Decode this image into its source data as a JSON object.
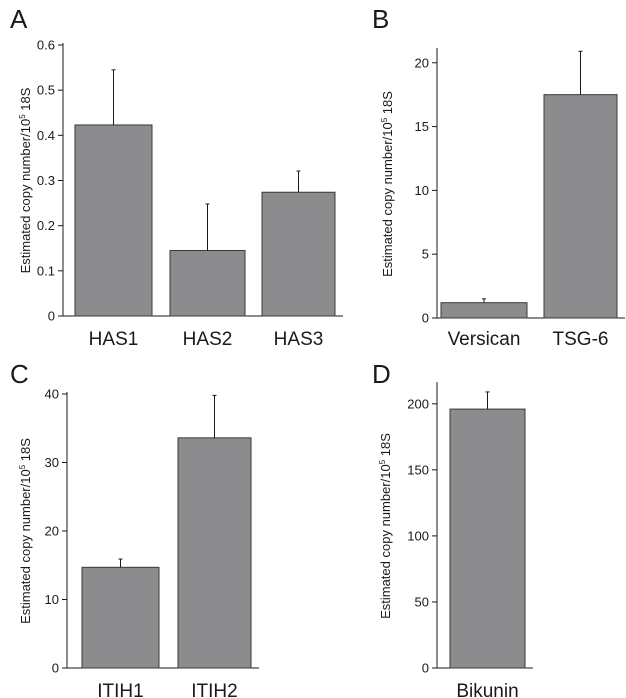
{
  "colors": {
    "bar": "#8c8c8f",
    "bar_edge": "#3a3a3a",
    "axis": "#1a1a1a"
  },
  "chart_data": [
    {
      "panel": "A",
      "type": "bar",
      "categories": [
        "HAS1",
        "HAS2",
        "HAS3"
      ],
      "values": [
        0.423,
        0.145,
        0.274
      ],
      "errors": [
        0.122,
        0.103,
        0.047
      ],
      "yticks": [
        "0",
        "0.1",
        "0.2",
        "0.3",
        "0.4",
        "0.5",
        "0.6"
      ],
      "ylim": [
        0,
        0.6
      ],
      "ylabel": {
        "pre": "Estimated copy number/10",
        "sup": "5",
        "post": " 18S"
      }
    },
    {
      "panel": "B",
      "type": "bar",
      "categories": [
        "Versican",
        "TSG-6"
      ],
      "values": [
        1.2,
        17.5
      ],
      "errors": [
        0.3,
        3.4
      ],
      "yticks": [
        "0",
        "5",
        "10",
        "15",
        "20"
      ],
      "ylim": [
        0,
        21
      ],
      "ylabel": {
        "pre": "Estimated copy number/10",
        "sup": "5",
        "post": " 18S"
      }
    },
    {
      "panel": "C",
      "type": "bar",
      "categories": [
        "ITIH1",
        "ITIH2"
      ],
      "values": [
        14.7,
        33.6
      ],
      "errors": [
        1.2,
        6.2
      ],
      "yticks": [
        "0",
        "10",
        "20",
        "30",
        "40"
      ],
      "ylim": [
        0,
        40
      ],
      "ylabel": {
        "pre": "Estimated copy number/10",
        "sup": "5",
        "post": " 18S"
      }
    },
    {
      "panel": "D",
      "type": "bar",
      "categories": [
        "Bikunin"
      ],
      "values": [
        196
      ],
      "errors": [
        13
      ],
      "yticks": [
        "0",
        "50",
        "100",
        "150",
        "200"
      ],
      "ylim": [
        0,
        215
      ],
      "ylabel": {
        "pre": "Estimated copy number/10",
        "sup": "5",
        "post": " 18S"
      }
    }
  ]
}
